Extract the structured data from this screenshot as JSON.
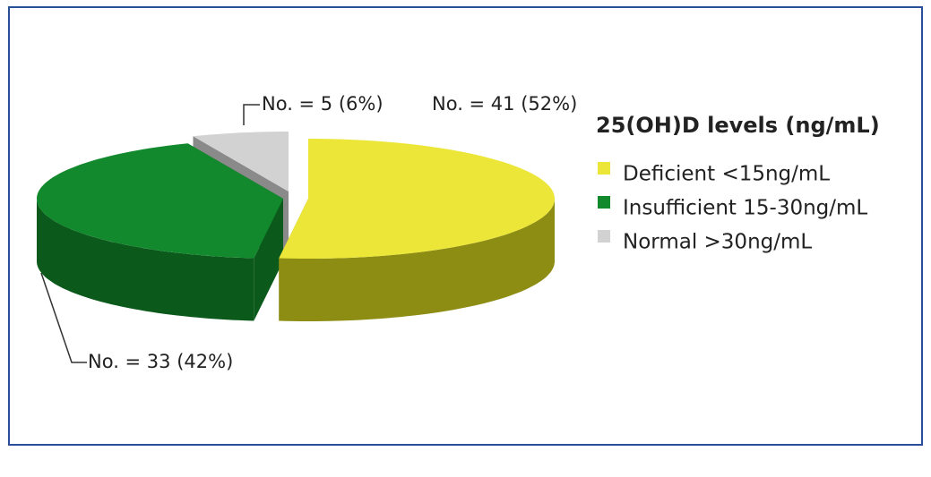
{
  "chart_data": {
    "type": "pie",
    "legend_title": "25(OH)D levels (ng/mL)",
    "categories": [
      "Deficient <15ng/mL",
      "Insufficient 15-30ng/mL",
      "Normal >30ng/mL"
    ],
    "values": [
      41,
      33,
      5
    ],
    "value_labels": [
      "No. = 41 (52%)",
      "No. = 33 (42%)",
      "No. = 5 (6%)"
    ],
    "colors": [
      "#ece638",
      "#12892d",
      "#d2d2d2"
    ],
    "side_colors": [
      "#8d8d14",
      "#0b5a1b",
      "#8a8a8a"
    ],
    "legend": "right"
  }
}
